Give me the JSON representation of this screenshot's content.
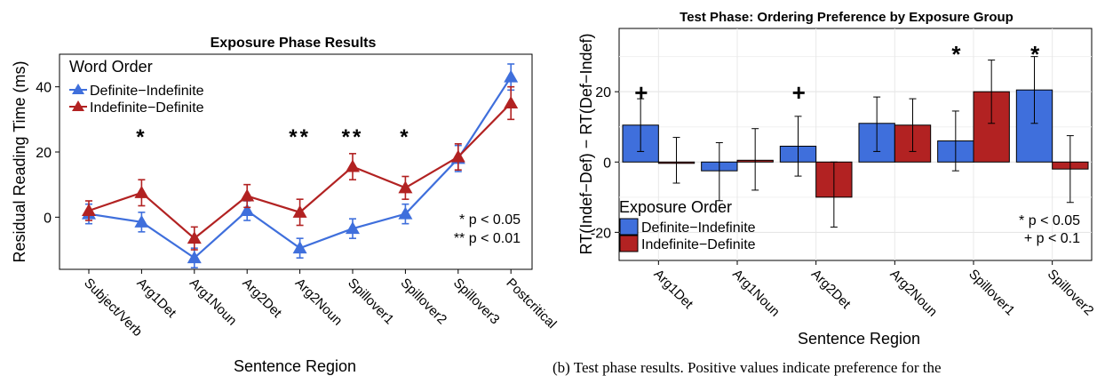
{
  "chart_data": [
    {
      "type": "line",
      "title": "Exposure Phase Results",
      "xlabel": "Sentence Region",
      "ylabel": "Residual Reading Time (ms)",
      "categories": [
        "Subject/Verb",
        "Arg1Det",
        "Arg1Noun",
        "Arg2Det",
        "Arg2Noun",
        "Spillover1",
        "Spillover2",
        "Spillover3",
        "Postcritical"
      ],
      "ylim": [
        -16,
        50
      ],
      "yticks": [
        0,
        20,
        40
      ],
      "legend_title": "Word Order",
      "legend_position": "top-left",
      "grid": false,
      "series": [
        {
          "name": "Definite−Indefinite",
          "color": "#3f6fdc",
          "values": [
            1,
            -1.5,
            -12.5,
            2,
            -9.5,
            -3.5,
            1,
            18,
            43
          ],
          "error": [
            3,
            3,
            3,
            3,
            3,
            3,
            3,
            4,
            4
          ]
        },
        {
          "name": "Indefinite−Definite",
          "color": "#b22222",
          "values": [
            2,
            7.5,
            -6.5,
            6.5,
            1.5,
            15.5,
            9,
            18.5,
            35
          ],
          "error": [
            3,
            4,
            3.5,
            3.5,
            4,
            4,
            3.5,
            4,
            5
          ]
        }
      ],
      "significance_marks": [
        {
          "category": "Arg1Det",
          "text": "*"
        },
        {
          "category": "Arg2Noun",
          "text": "**"
        },
        {
          "category": "Spillover1",
          "text": "**"
        },
        {
          "category": "Spillover2",
          "text": "*"
        }
      ],
      "notes": [
        "* p < 0.05",
        "** p < 0.01"
      ]
    },
    {
      "type": "bar",
      "title": "Test Phase: Ordering Preference by Exposure Group",
      "xlabel": "Sentence Region",
      "ylabel": "RT(Indef−Def) − RT(Def−Indef)",
      "categories": [
        "Arg1Det",
        "Arg1Noun",
        "Arg2Det",
        "Arg2Noun",
        "Spillover1",
        "Spillover2"
      ],
      "ylim": [
        -28,
        38
      ],
      "yticks": [
        -20,
        0,
        20
      ],
      "legend_title": "Exposure Order",
      "legend_position": "bottom-left",
      "grid": true,
      "series": [
        {
          "name": "Definite−Indefinite",
          "color": "#3f6fdc",
          "values": [
            10.5,
            -2.5,
            4.5,
            11,
            6,
            20.5
          ],
          "lower": [
            3,
            -11,
            -4,
            3,
            -2.5,
            11
          ],
          "upper": [
            18,
            5.5,
            13,
            18.5,
            14.5,
            30
          ]
        },
        {
          "name": "Indefinite−Definite",
          "color": "#b22222",
          "values": [
            0,
            0.5,
            -10,
            10.5,
            20,
            -2
          ],
          "lower": [
            -6,
            -8,
            -18.5,
            3,
            11,
            -11.5
          ],
          "upper": [
            7,
            9.5,
            0,
            18,
            29,
            7.5
          ]
        }
      ],
      "significance_marks": [
        {
          "category": "Arg1Det",
          "text": "+"
        },
        {
          "category": "Arg2Det",
          "text": "+"
        },
        {
          "category": "Spillover1",
          "text": "*"
        },
        {
          "category": "Spillover2",
          "text": "*"
        }
      ],
      "notes": [
        "* p < 0.05",
        "+ p < 0.1"
      ]
    }
  ],
  "caption_fragment": "(b) Test phase results. Positive values indicate preference for the"
}
